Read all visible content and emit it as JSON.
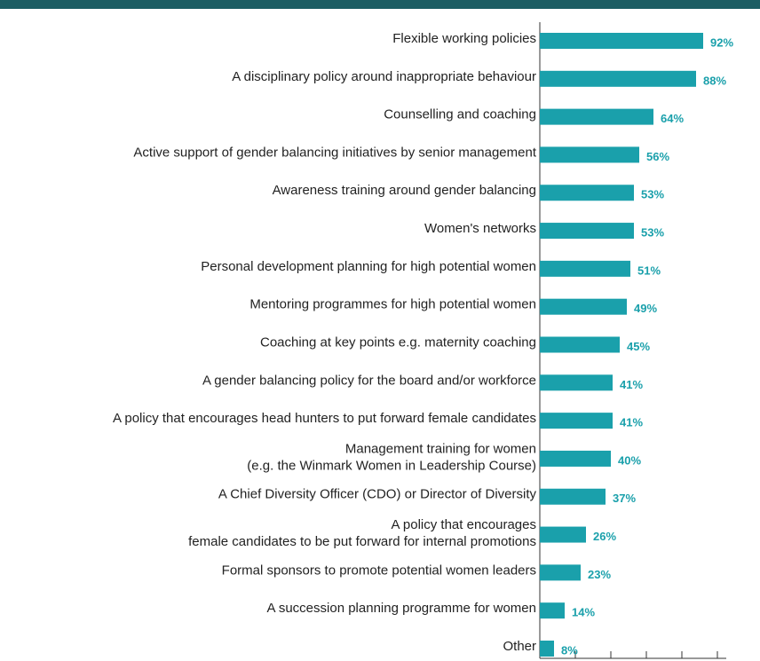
{
  "chart_data": {
    "type": "bar",
    "orientation": "horizontal",
    "categories": [
      "Flexible working policies",
      "A disciplinary policy around inappropriate behaviour",
      "Counselling and coaching",
      "Active support of gender balancing initiatives by senior management",
      "Awareness training around gender balancing",
      "Women's networks",
      "Personal development planning for high potential women",
      "Mentoring programmes for high potential women",
      "Coaching at key points e.g. maternity coaching",
      "A gender balancing policy for the board and/or workforce",
      "A policy that encourages head hunters to put forward female candidates",
      [
        "Management training for women",
        "(e.g. the Winmark Women in Leadership Course)"
      ],
      "A Chief Diversity Officer (CDO) or Director of Diversity",
      [
        "A policy that encourages",
        "female candidates to be put forward for internal promotions"
      ],
      "Formal sponsors to promote potential women leaders",
      "A succession planning programme for women",
      "Other"
    ],
    "values": [
      92,
      88,
      64,
      56,
      53,
      53,
      51,
      49,
      45,
      41,
      41,
      40,
      37,
      26,
      23,
      14,
      8
    ],
    "value_labels": [
      "92%",
      "88%",
      "64%",
      "56%",
      "53%",
      "53%",
      "51%",
      "49%",
      "45%",
      "41%",
      "41%",
      "40%",
      "37%",
      "26%",
      "23%",
      "14%",
      "8%"
    ],
    "color": "#1aa0ab",
    "label_color": "#1aa0ab",
    "header_color": "#1c5d63",
    "xlim": [
      0,
      105
    ],
    "xticks": [
      0,
      20,
      40,
      60,
      80,
      100
    ]
  }
}
